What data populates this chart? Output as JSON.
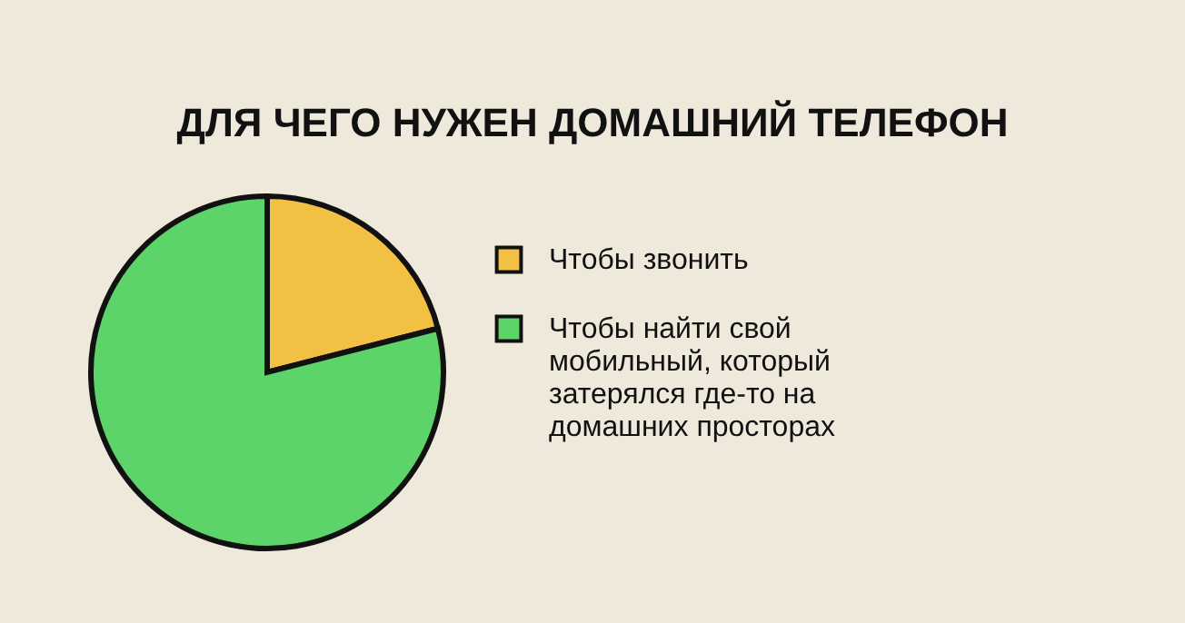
{
  "chart_data": {
    "type": "pie",
    "title": "ДЛЯ ЧЕГО НУЖЕН ДОМАШНИЙ ТЕЛЕФОН",
    "categories": [
      "Чтобы звонить",
      "Чтобы найти свой мобильный, который затерялся где-то на домашних просторах"
    ],
    "values": [
      21,
      79
    ],
    "colors": [
      "#f2c043",
      "#5cd46a"
    ],
    "legend": "right"
  }
}
